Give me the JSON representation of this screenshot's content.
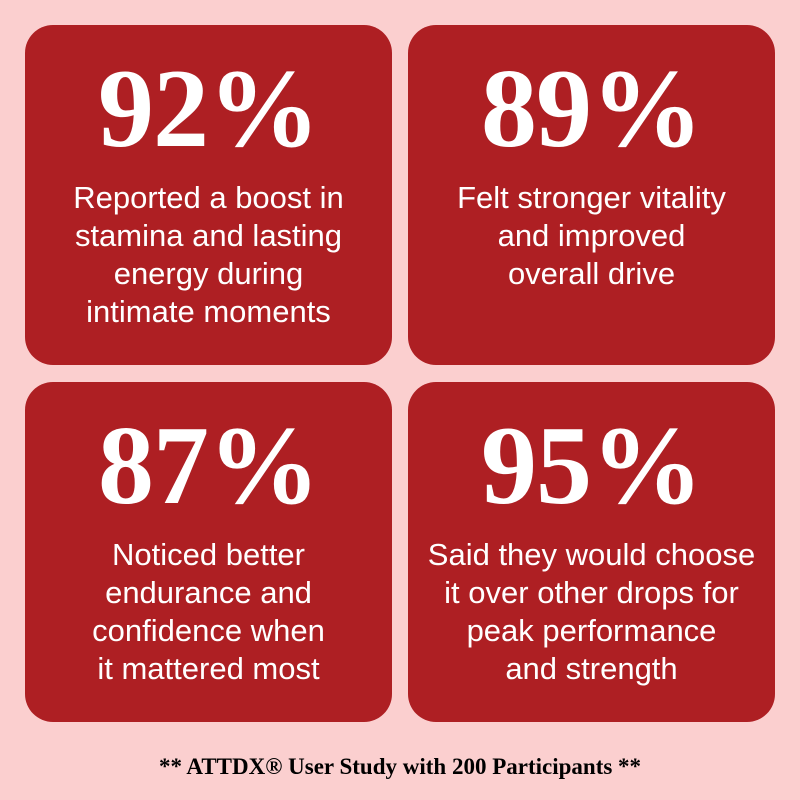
{
  "cards": [
    {
      "stat": "92%",
      "lines": [
        "Reported a boost in",
        "stamina and lasting",
        "energy during",
        "intimate moments"
      ]
    },
    {
      "stat": "89%",
      "lines": [
        "Felt stronger vitality",
        "and improved",
        "overall drive"
      ]
    },
    {
      "stat": "87%",
      "lines": [
        "Noticed better",
        "endurance and",
        "confidence when",
        "it mattered most"
      ]
    },
    {
      "stat": "95%",
      "lines": [
        "Said they would choose",
        "it over other drops for",
        "peak performance",
        "and strength"
      ]
    }
  ],
  "footer": "** ATTDX® User Study with 200 Participants **"
}
